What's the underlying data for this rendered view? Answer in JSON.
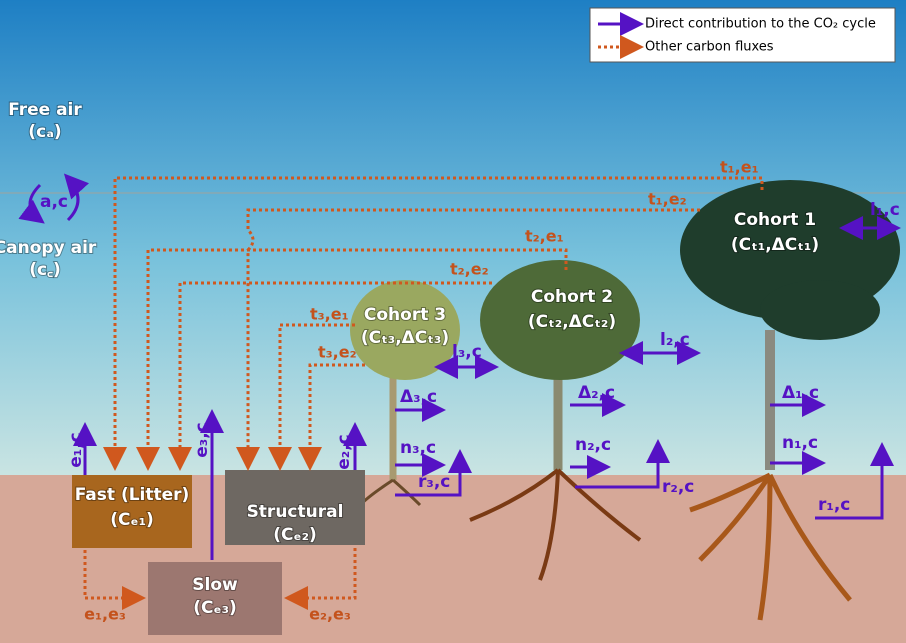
{
  "legend": {
    "direct": "Direct contribution to the CO₂ cycle",
    "other": "Other carbon fluxes"
  },
  "air": {
    "free_air": "Free air",
    "free_air_symbol": "(cₐ)",
    "exchange": "a,c",
    "canopy_air": "Canopy air",
    "canopy_air_symbol": "(c꜀)"
  },
  "cohorts": [
    {
      "name": "Cohort 1",
      "symbol": "(Cₜ₁,ΔCₜ₁)",
      "to_fast": "t₁,e₁",
      "to_structural": "t₁,e₂",
      "leaf": "l₁,c",
      "growth": "Δ₁,c",
      "npp": "n₁,c",
      "resp": "r₁,c"
    },
    {
      "name": "Cohort 2",
      "symbol": "(Cₜ₂,ΔCₜ₂)",
      "to_fast": "t₂,e₁",
      "to_structural": "t₂,e₂",
      "leaf": "l₂,c",
      "growth": "Δ₂,c",
      "npp": "n₂,c",
      "resp": "r₂,c"
    },
    {
      "name": "Cohort 3",
      "symbol": "(Cₜ₃,ΔCₜ₃)",
      "to_fast": "t₃,e₁",
      "to_structural": "t₃,e₂",
      "leaf": "l₃,c",
      "growth": "Δ₃,c",
      "npp": "n₃,c",
      "resp": "r₃,c"
    }
  ],
  "pools": {
    "fast": "Fast (Litter)",
    "fast_symbol": "(Cₑ₁)",
    "structural": "Structural",
    "structural_symbol": "(Cₑ₂)",
    "slow": "Slow",
    "slow_symbol": "(Cₑ₃)",
    "fast_emission": "e₁,c",
    "structural_emission": "e₂,c",
    "slow_emission": "e₃,c",
    "fast_to_slow": "e₁,e₃",
    "structural_to_slow": "e₂,e₃"
  }
}
